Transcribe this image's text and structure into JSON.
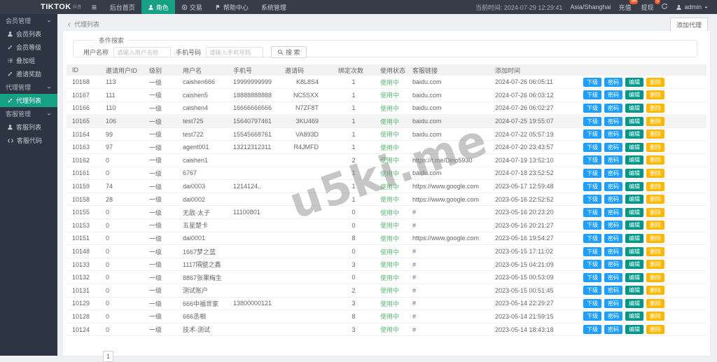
{
  "navbar": {
    "logo": "TIKTOK",
    "logo_suffix": "抖音",
    "menu": [
      {
        "label": "",
        "icon": "grid-icon",
        "name": "nav-grid-button"
      },
      {
        "label": "后台首页",
        "name": "nav-item-home"
      },
      {
        "label": "角色",
        "icon": "user-icon",
        "active": true,
        "name": "nav-item-role"
      },
      {
        "label": "交易",
        "icon": "coin-icon",
        "name": "nav-item-trade"
      },
      {
        "label": "帮助中心",
        "icon": "flag-icon",
        "name": "nav-item-help"
      },
      {
        "label": "系统管理",
        "name": "nav-item-system"
      }
    ],
    "current_time": "当前时间: 2024-07-29 12:29:41",
    "timezone": "Asia/Shanghai",
    "notifications": [
      {
        "label": "充值",
        "badge": "56",
        "name": "recharge"
      },
      {
        "label": "提现",
        "badge": "5",
        "name": "withdraw"
      }
    ],
    "username": "admin"
  },
  "sidebar": {
    "items": [
      {
        "label": "会员管理",
        "type": "group",
        "icon": "chevron-down-icon",
        "name": "member-management"
      },
      {
        "label": "会员列表",
        "type": "item",
        "icon": "user-icon",
        "name": "member-list"
      },
      {
        "label": "会员等级",
        "type": "item",
        "icon": "link-icon",
        "name": "member-level"
      },
      {
        "label": "叠加组",
        "type": "item",
        "icon": "list-icon",
        "name": "stack-group"
      },
      {
        "label": "邀请奖励",
        "type": "item",
        "icon": "link-icon",
        "name": "invite-reward"
      },
      {
        "label": "代理管理",
        "type": "group",
        "icon": "chevron-down-icon",
        "name": "agent-management"
      },
      {
        "label": "代理列表",
        "type": "item",
        "icon": "link-icon",
        "active": true,
        "name": "agent-list"
      },
      {
        "label": "客服管理",
        "type": "group",
        "icon": "chevron-down-icon",
        "name": "service-management"
      },
      {
        "label": "客服列表",
        "type": "item",
        "icon": "user-icon",
        "name": "service-list"
      },
      {
        "label": "客服代码",
        "type": "item",
        "icon": "code-icon",
        "name": "service-code"
      }
    ]
  },
  "page": {
    "breadcrumb": "代理列表",
    "add_button": "添加代理"
  },
  "search": {
    "legend": "条件搜索",
    "username_label": "用户名称",
    "username_placeholder": "请输入用户名称",
    "username_value": "",
    "phone_label": "手机号码",
    "phone_placeholder": "请输入手机号码",
    "phone_value": "",
    "search_button": "搜 索"
  },
  "table": {
    "headers": [
      "ID",
      "邀请用户ID",
      "级别",
      "用户名",
      "手机号",
      "邀请码",
      "绑定次数",
      "使用状态",
      "客服链接",
      "添加时间",
      ""
    ],
    "action_labels": [
      "下级",
      "密码",
      "编辑",
      "删除"
    ],
    "rows": [
      [
        "10168",
        "113",
        "一级",
        "caishen666",
        "19999999999",
        "K8L8S4",
        "1",
        "使用中",
        "baidu.com",
        "2024-07-26 06:05:11"
      ],
      [
        "10167",
        "111",
        "一级",
        "caishen5",
        "18888888888",
        "NC5SXX",
        "1",
        "使用中",
        "baidu.com",
        "2024-07-26 06:03:12"
      ],
      [
        "10166",
        "110",
        "一级",
        "caishen4",
        "16666666666",
        "N7ZF8T",
        "1",
        "使用中",
        "baidu.com",
        "2024-07-26 06:02:27"
      ],
      [
        "10165",
        "106",
        "一级",
        "test725",
        "15640797461",
        "3KU469",
        "1",
        "使用中",
        "baidu.com",
        "2024-07-25 19:55:07"
      ],
      [
        "10164",
        "99",
        "一级",
        "test722",
        "15545668761",
        "VA893D",
        "1",
        "使用中",
        "baidu.com",
        "2024-07-22 05:57:19"
      ],
      [
        "10163",
        "97",
        "一级",
        "agent001",
        "13212312311",
        "R4JMFD",
        "1",
        "使用中",
        "",
        "2024-07-20 23:43:57"
      ],
      [
        "10162",
        "0",
        "一级",
        "caishen1",
        "",
        "",
        "2",
        "使用中",
        "https://t.me/Dino5930",
        "2024-07-19 13:52:10"
      ],
      [
        "10161",
        "0",
        "一级",
        "6767",
        "",
        "",
        "1",
        "使用中",
        "baidu.com",
        "2024-07-18 23:52:52"
      ],
      [
        "10159",
        "74",
        "一级",
        "dai0003",
        "1214124..",
        "",
        "1",
        "使用中",
        "https://www.google.com",
        "2023-05-17 12:59:48"
      ],
      [
        "10158",
        "28",
        "一级",
        "dai0002",
        "",
        "",
        "1",
        "使用中",
        "https://www.google.com",
        "2023-05-16 22:52:52"
      ],
      [
        "10155",
        "0",
        "一级",
        "无敌-太子",
        "11100801",
        "",
        "0",
        "使用中",
        "#",
        "2023-05-16 20:23:20"
      ],
      [
        "10153",
        "0",
        "一级",
        "五星楚卡",
        "",
        "",
        "0",
        "使用中",
        "#",
        "2023-05-16 20:21:27"
      ],
      [
        "10151",
        "0",
        "一级",
        "dai0001",
        "",
        "",
        "8",
        "使用中",
        "https://www.google.com",
        "2023-05-16 19:54:27"
      ],
      [
        "10148",
        "0",
        "一级",
        "1667梦之蓝",
        "",
        "",
        "0",
        "使用中",
        "#",
        "2023-05-15 17:11:02"
      ],
      [
        "10133",
        "0",
        "一级",
        "1117隔壁之鑫",
        "",
        "",
        "3",
        "使用中",
        "#",
        "2023-05-15 04:21:09"
      ],
      [
        "10132",
        "0",
        "一级",
        "8867张果梅生",
        "",
        "",
        "0",
        "使用中",
        "#",
        "2023-05-15 00:53:09"
      ],
      [
        "10131",
        "0",
        "一级",
        "测试账户",
        "",
        "",
        "2",
        "使用中",
        "#",
        "2023-05-15 00:51:45"
      ],
      [
        "10129",
        "0",
        "一级",
        "666中福世家",
        "13800000121",
        "",
        "3",
        "使用中",
        "#",
        "2023-05-14 22:29:27"
      ],
      [
        "10128",
        "0",
        "一级",
        "666丞相",
        "",
        "",
        "8",
        "使用中",
        "#",
        "2023-05-14 21:59:15"
      ],
      [
        "10124",
        "0",
        "一级",
        "技术-测试",
        "",
        "",
        "3",
        "使用中",
        "#",
        "2023-05-14 18:43:18"
      ]
    ]
  },
  "pagination": {
    "page": "1"
  },
  "watermark": "u5ki.me",
  "colors": {
    "accent_green": "#16a084",
    "button_blue": "#1E9FFF",
    "button_green": "#009688",
    "button_yellow": "#FFB800",
    "status_green": "#5FB878",
    "badge_orange": "#FF5722"
  }
}
